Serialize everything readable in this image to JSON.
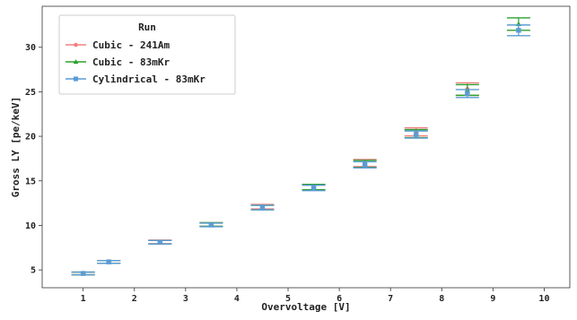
{
  "chart_data": {
    "type": "scatter",
    "title": "",
    "xlabel": "Overvoltage [V]",
    "ylabel": "Gross LY [pe/keV]",
    "xlim": [
      0.2,
      10.5
    ],
    "ylim": [
      3,
      34.6
    ],
    "xticks": [
      "1",
      "2",
      "3",
      "4",
      "5",
      "6",
      "7",
      "8",
      "9",
      "10"
    ],
    "yticks": [
      "5",
      "10",
      "15",
      "20",
      "25",
      "30"
    ],
    "grid": false,
    "legend": {
      "title": "Run",
      "position": "top-left"
    },
    "series": [
      {
        "name": "Cubic - 241Am",
        "color": "#f08080",
        "marker": "circle",
        "points": [
          {
            "x": 1.0,
            "y": 4.6,
            "err": 0.15
          },
          {
            "x": 1.5,
            "y": 5.9,
            "err": 0.15
          },
          {
            "x": 2.5,
            "y": 8.15,
            "err": 0.2
          },
          {
            "x": 3.5,
            "y": 10.1,
            "err": 0.2
          },
          {
            "x": 4.5,
            "y": 12.1,
            "err": 0.25
          },
          {
            "x": 5.5,
            "y": 14.3,
            "err": 0.3
          },
          {
            "x": 6.5,
            "y": 17.0,
            "err": 0.4
          },
          {
            "x": 7.5,
            "y": 20.5,
            "err": 0.45
          },
          {
            "x": 8.5,
            "y": 25.3,
            "err": 0.7
          }
        ]
      },
      {
        "name": "Cubic - 83mKr",
        "color": "#2ca02c",
        "marker": "triangle",
        "points": [
          {
            "x": 1.0,
            "y": 4.6,
            "err": 0.15
          },
          {
            "x": 1.5,
            "y": 5.9,
            "err": 0.15
          },
          {
            "x": 2.5,
            "y": 8.1,
            "err": 0.2
          },
          {
            "x": 3.5,
            "y": 10.1,
            "err": 0.2
          },
          {
            "x": 4.5,
            "y": 12.0,
            "err": 0.25
          },
          {
            "x": 5.5,
            "y": 14.3,
            "err": 0.3
          },
          {
            "x": 6.5,
            "y": 16.9,
            "err": 0.4
          },
          {
            "x": 7.5,
            "y": 20.3,
            "err": 0.45
          },
          {
            "x": 8.5,
            "y": 25.2,
            "err": 0.6
          },
          {
            "x": 9.5,
            "y": 32.6,
            "err": 0.7
          }
        ]
      },
      {
        "name": "Cylindrical - 83mKr",
        "color": "#5b9bd5",
        "marker": "square",
        "points": [
          {
            "x": 1.0,
            "y": 4.6,
            "err": 0.15
          },
          {
            "x": 1.5,
            "y": 5.9,
            "err": 0.15
          },
          {
            "x": 2.5,
            "y": 8.1,
            "err": 0.2
          },
          {
            "x": 3.5,
            "y": 10.05,
            "err": 0.2
          },
          {
            "x": 4.5,
            "y": 12.0,
            "err": 0.25
          },
          {
            "x": 5.5,
            "y": 14.2,
            "err": 0.3
          },
          {
            "x": 6.5,
            "y": 16.8,
            "err": 0.35
          },
          {
            "x": 7.5,
            "y": 20.2,
            "err": 0.4
          },
          {
            "x": 8.5,
            "y": 24.8,
            "err": 0.45
          },
          {
            "x": 9.5,
            "y": 31.9,
            "err": 0.6
          }
        ]
      }
    ]
  }
}
